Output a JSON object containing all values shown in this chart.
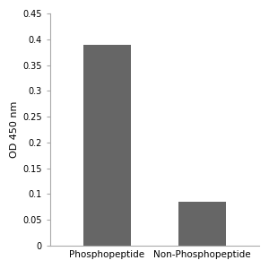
{
  "categories": [
    "Phosphopeptide",
    "Non-Phosphopeptide"
  ],
  "values": [
    0.39,
    0.085
  ],
  "bar_color": "#666666",
  "ylabel": "OD 450 nm",
  "ylim": [
    0,
    0.45
  ],
  "yticks": [
    0,
    0.05,
    0.1,
    0.15,
    0.2,
    0.25,
    0.3,
    0.35,
    0.4,
    0.45
  ],
  "bar_width": 0.5,
  "background_color": "#ffffff",
  "tick_label_fontsize": 7,
  "ylabel_fontsize": 8,
  "xlabel_fontsize": 7.5,
  "spine_color": "#aaaaaa"
}
